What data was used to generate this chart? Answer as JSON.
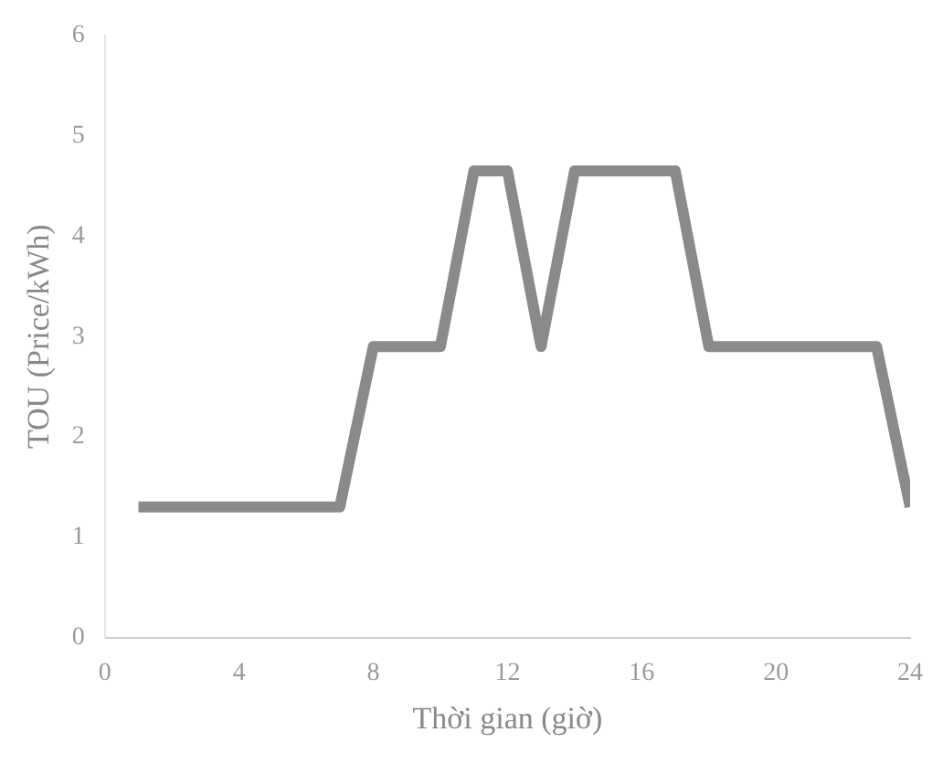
{
  "chart_data": {
    "type": "line",
    "xlabel": "Thời gian (giờ)",
    "ylabel": "TOU (Price/kWh)",
    "x": [
      1,
      7,
      8,
      10,
      11,
      12,
      13,
      14,
      17,
      18,
      23,
      24
    ],
    "series": [
      {
        "color": "#8a8a8a",
        "values": [
          1.3,
          1.3,
          2.9,
          2.9,
          4.65,
          4.65,
          2.9,
          4.65,
          4.65,
          2.9,
          2.9,
          1.3
        ]
      }
    ],
    "xlim": [
      0,
      24
    ],
    "xticks": [
      0,
      4,
      8,
      12,
      16,
      20,
      24
    ],
    "ylim": [
      0,
      6
    ],
    "yticks": [
      0,
      1,
      2,
      3,
      4,
      5,
      6
    ],
    "grid": false,
    "legend": false,
    "marker": "none",
    "line_style": "solid"
  }
}
